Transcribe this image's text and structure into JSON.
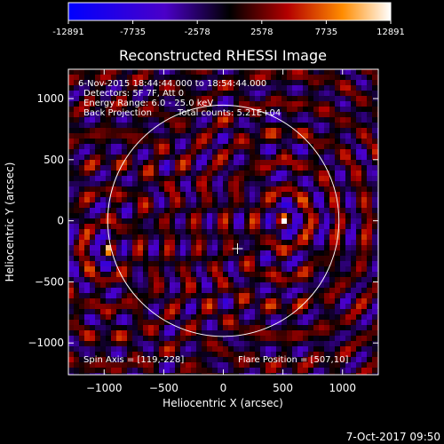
{
  "chart_data": {
    "type": "heatmap",
    "title": "Reconstructed RHESSI Image",
    "xlabel": "Heliocentric X (arcsec)",
    "ylabel": "Heliocentric Y (arcsec)",
    "xlim": [
      -1300,
      1300
    ],
    "ylim": [
      -1260,
      1240
    ],
    "x_ticks": [
      -1000,
      -500,
      0,
      500,
      1000
    ],
    "y_ticks": [
      -1000,
      -500,
      0,
      500,
      1000
    ],
    "colorbar": {
      "ticks": [
        "-12891",
        "-7735",
        "-2578",
        "2578",
        "7735",
        "12891"
      ],
      "range": [
        -12891,
        12891
      ],
      "colors": [
        "#0000ff",
        "#4b00c8",
        "#000000",
        "#b40000",
        "#ff8c00",
        "#ffffff"
      ]
    },
    "annotations": [
      "6-Nov-2015 18:44:44.000 to 18:54:44.000",
      "Detectors: 5F 7F, Att 0",
      "Energy Range: 6.0 - 25.0 keV",
      "Back Projection",
      "Total counts: 5.21E+04"
    ],
    "spin_axis": "Spin Axis = [119,-228]",
    "flare_position": "Flare Position = [507,10]",
    "spin_axis_xy": [
      119,
      -228
    ],
    "flare_xy": [
      507,
      10
    ],
    "sources": [
      {
        "x": 507,
        "y": 10,
        "amp": 1.0
      },
      {
        "x": -960,
        "y": -240,
        "amp": 0.85
      }
    ],
    "solar_disk_radius_arcsec": 970,
    "timestamp": "7-Oct-2017 09:50"
  }
}
